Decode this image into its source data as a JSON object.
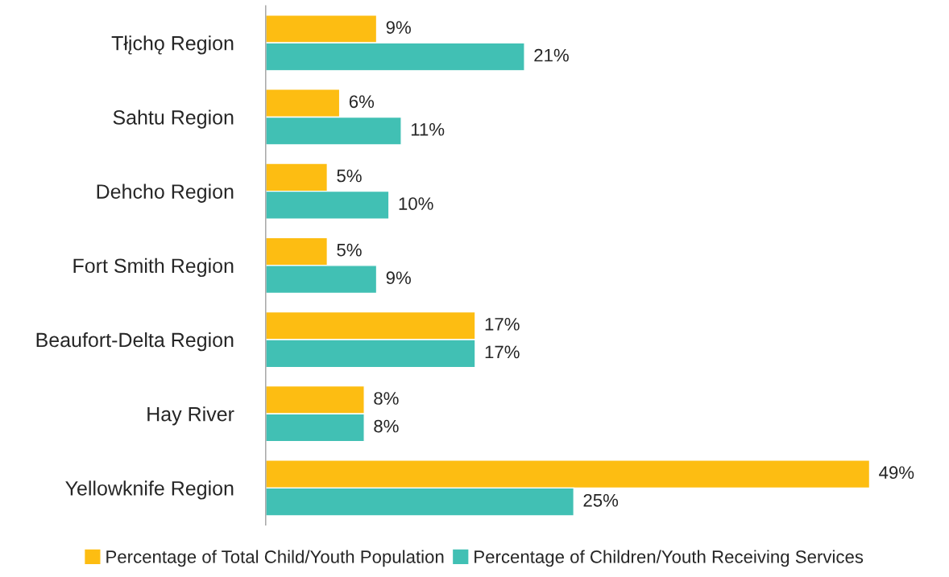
{
  "chart_data": {
    "type": "bar",
    "orientation": "horizontal",
    "categories": [
      "Tłįchǫ Region",
      "Sahtu Region",
      "Dehcho Region",
      "Fort Smith Region",
      "Beaufort-Delta Region",
      "Hay River",
      "Yellowknife Region"
    ],
    "series": [
      {
        "name": "Percentage of Total Child/Youth Population",
        "color": "#fdbd12",
        "values": [
          9,
          6,
          5,
          5,
          17,
          8,
          49
        ],
        "value_labels": [
          "9%",
          "6%",
          "5%",
          "5%",
          "17%",
          "8%",
          "49%"
        ]
      },
      {
        "name": "Percentage of Children/Youth Receiving Services",
        "color": "#41c0b4",
        "values": [
          21,
          11,
          10,
          9,
          17,
          8,
          25
        ],
        "value_labels": [
          "21%",
          "11%",
          "10%",
          "9%",
          "17%",
          "8%",
          "25%"
        ]
      }
    ],
    "legend": "bottom",
    "grid": false
  }
}
